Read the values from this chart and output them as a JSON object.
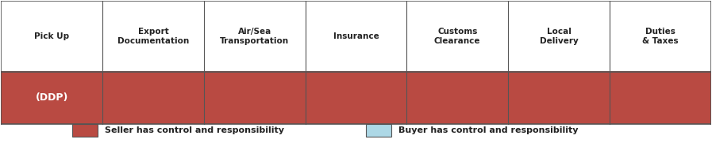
{
  "columns": [
    "Pick Up",
    "Export\nDocumentation",
    "Air/Sea\nTransportation",
    "Insurance",
    "Customs\nClearance",
    "Local\nDelivery",
    "Duties\n& Taxes"
  ],
  "row_label": "(DDP)",
  "seller_color": "#B94A42",
  "buyer_color": "#ADD8E6",
  "header_bg": "#FFFFFF",
  "border_color": "#555555",
  "text_color_header": "#222222",
  "text_color_row": "#FFFFFF",
  "legend_seller_label": "Seller has control and responsibility",
  "legend_buyer_label": "Buyer has control and responsibility",
  "n_cols": 7,
  "figsize": [
    8.97,
    1.81
  ],
  "dpi": 100
}
